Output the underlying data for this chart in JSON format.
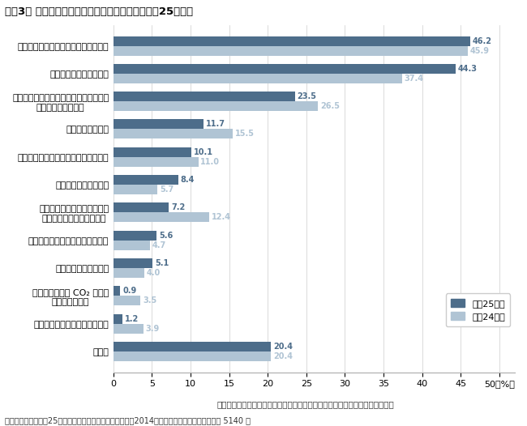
{
  "title": "》図3「 テレワークの導入目的（複数回答）（平成２５年末）",
  "title_plain": "【図3】 テレワークの導入目的（複数回答）（平成25年末）",
  "categories": [
    "定型的業務の効率性（生産性）の向上",
    "勤務者の移動時間の短縮",
    "非常時（地震、新型インフルエンザ等）\nの事業継続に備えて",
    "顧客満足度の向上",
    "勤務者にゆとりと健康的な生活の実現",
    "オフィスコストの削減",
    "通勤弱者（身障者、高齢者、\n育児中の女性等）への対応",
    "付加価値創造業務の創造性の向上",
    "優秀な人材の雇用確保",
    "交通代替による CO₂ 削減等\n地球温暖化対策",
    "省エネルギー、節電対策のため",
    "その他"
  ],
  "values_2013": [
    46.2,
    44.3,
    23.5,
    11.7,
    10.1,
    8.4,
    7.2,
    5.6,
    5.1,
    0.9,
    1.2,
    20.4
  ],
  "values_2012": [
    45.9,
    37.4,
    26.5,
    15.5,
    11.0,
    5.7,
    12.4,
    4.7,
    4.0,
    3.5,
    3.9,
    20.4
  ],
  "color_2013": "#4d6d8a",
  "color_2012": "#b0c4d4",
  "xticks": [
    0,
    5,
    10,
    15,
    20,
    25,
    30,
    35,
    40,
    45,
    50
  ],
  "xtick_labels": [
    "0",
    "5",
    "10",
    "15",
    "20",
    "25",
    "30",
    "35",
    "40",
    "45",
    "50（%）"
  ],
  "legend_2013": "平成25年末",
  "legend_2012": "平成24年末",
  "footer_note": "テレワークには在宅勤務、サテライトオフィス勤務、モバイルワークを含む。",
  "source_note": "出典：総務省「平成25年通信利用動向調査」　調査期間：2014年１～３月　調査企業数：全国 5140 社",
  "background_color": "#ffffff",
  "bar_height": 0.35
}
